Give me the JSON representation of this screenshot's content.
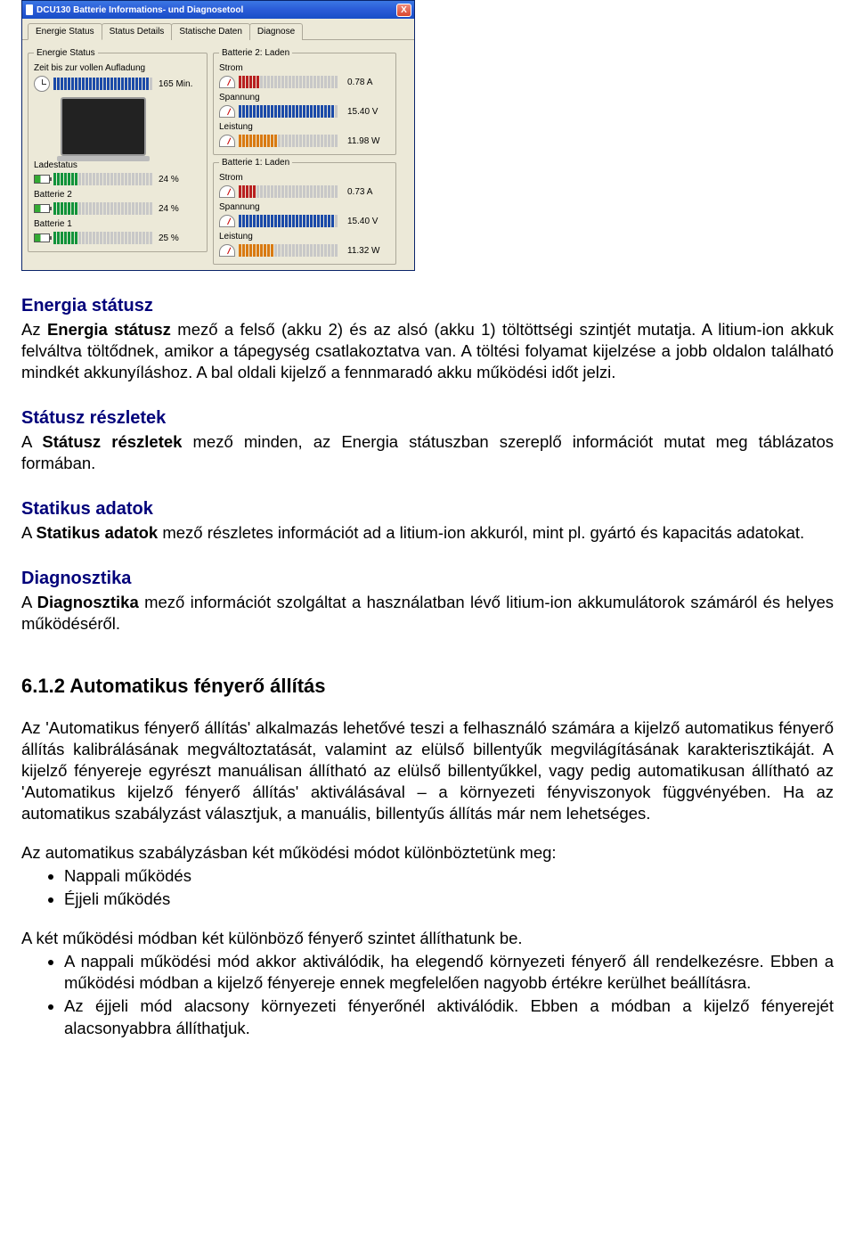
{
  "colors": {
    "titlebar_gradient": [
      "#3b77e3",
      "#2a5bd7",
      "#184ec7"
    ],
    "win_bg": "#ece9d8",
    "win_border": "#0a246a",
    "group_border": "#aca899",
    "bar_inactive": "#c8c8c8",
    "bar_green": "#12933b",
    "bar_blue": "#1b4aa8",
    "bar_red": "#b82020",
    "bar_orange": "#d97a12",
    "heading_blue": "#00007a",
    "close_btn_gradient": [
      "#f08b7a",
      "#d9472f"
    ]
  },
  "window": {
    "title": "DCU130 Batterie Informations- und Diagnosetool",
    "close_label": "X",
    "tabs": [
      {
        "label": "Energie Status",
        "active": true
      },
      {
        "label": "Status Details",
        "active": false
      },
      {
        "label": "Statische Daten",
        "active": false
      },
      {
        "label": "Diagnose",
        "active": false
      }
    ],
    "bar_total_segments": 28,
    "left_panel": {
      "title": "Energie Status",
      "time_label": "Zeit bis zur vollen Aufladung",
      "time_value": "165 Min.",
      "time_bar": {
        "filled": 27,
        "style": "blue"
      },
      "rows": [
        {
          "label": "Ladestatus",
          "value": "24 %",
          "filled": 7,
          "style": "green",
          "icon": "battery"
        },
        {
          "label": "Batterie 2",
          "value": "24 %",
          "filled": 7,
          "style": "green",
          "icon": "battery"
        },
        {
          "label": "Batterie 1",
          "value": "25 %",
          "filled": 7,
          "style": "green",
          "icon": "battery"
        }
      ]
    },
    "right_panel": {
      "groups": [
        {
          "title": "Batterie 2: Laden",
          "rows": [
            {
              "label": "Strom",
              "value": "0.78 A",
              "style": "red",
              "filled": 6,
              "icon": "gauge"
            },
            {
              "label": "Spannung",
              "value": "15.40 V",
              "style": "blue",
              "filled": 27,
              "icon": "gauge"
            },
            {
              "label": "Leistung",
              "value": "11.98 W",
              "style": "orange",
              "filled": 11,
              "icon": "gauge"
            }
          ]
        },
        {
          "title": "Batterie 1: Laden",
          "rows": [
            {
              "label": "Strom",
              "value": "0.73 A",
              "style": "red",
              "filled": 5,
              "icon": "gauge"
            },
            {
              "label": "Spannung",
              "value": "15.40 V",
              "style": "blue",
              "filled": 27,
              "icon": "gauge"
            },
            {
              "label": "Leistung",
              "value": "11.32 W",
              "style": "orange",
              "filled": 10,
              "icon": "gauge"
            }
          ]
        }
      ]
    }
  },
  "doc": {
    "s1_title": "Energia státusz",
    "s1_p": "Az Energia státusz mező a felső (akku 2) és az alsó (akku 1) töltöttségi szintjét mutatja. A litium-ion akkuk felváltva töltődnek, amikor a tápegység csatlakoztatva van. A töltési folyamat kijelzése a jobb oldalon található mindkét akkunyíláshoz. A bal oldali kijelző a fennmaradó akku működési időt jelzi.",
    "s1_bold": "Energia státusz",
    "s2_title": "Státusz részletek",
    "s2_p": "A Státusz részletek mező minden, az Energia státuszban szereplő információt mutat meg táblázatos formában.",
    "s2_bold": "Státusz részletek",
    "s3_title": "Statikus adatok",
    "s3_p": "A Statikus adatok mező részletes információt ad a litium-ion akkuról, mint pl. gyártó és kapacitás adatokat.",
    "s3_bold": "Statikus adatok",
    "s4_title": "Diagnosztika",
    "s4_p": "A Diagnosztika mező információt szolgáltat a használatban lévő litium-ion akkumulátorok számáról és helyes működéséről.",
    "s4_bold": "Diagnosztika",
    "h612": "6.1.2  Automatikus fényerő állítás",
    "p612a": "Az 'Automatikus fényerő állítás' alkalmazás lehetővé teszi a felhasználó számára a kijelző automatikus fényerő állítás kalibrálásának megváltoztatását, valamint az elülső billentyűk megvilágításának karakterisztikáját. A kijelző fényereje egyrészt manuálisan állítható az elülső billentyűkkel, vagy pedig automatikusan állítható az 'Automatikus kijelző fényerő állítás' aktiválásával – a környezeti fényviszonyok függvényében. Ha az automatikus szabályzást választjuk, a manuális, billentyűs állítás már nem lehetséges.",
    "p612b": "Az automatikus szabályzásban két működési módot különböztetünk meg:",
    "li1": "Nappali működés",
    "li2": "Éjjeli működés",
    "p612c": "A két működési módban két különböző fényerő szintet állíthatunk be.",
    "li3": "A nappali működési mód akkor aktiválódik, ha elegendő környezeti fényerő áll rendelkezésre. Ebben a működési módban a kijelző fényereje ennek megfelelően nagyobb értékre kerülhet beállításra.",
    "li4": "Az éjjeli mód alacsony környezeti fényerőnél aktiválódik. Ebben a módban a kijelző fényerejét alacsonyabbra állíthatjuk."
  }
}
